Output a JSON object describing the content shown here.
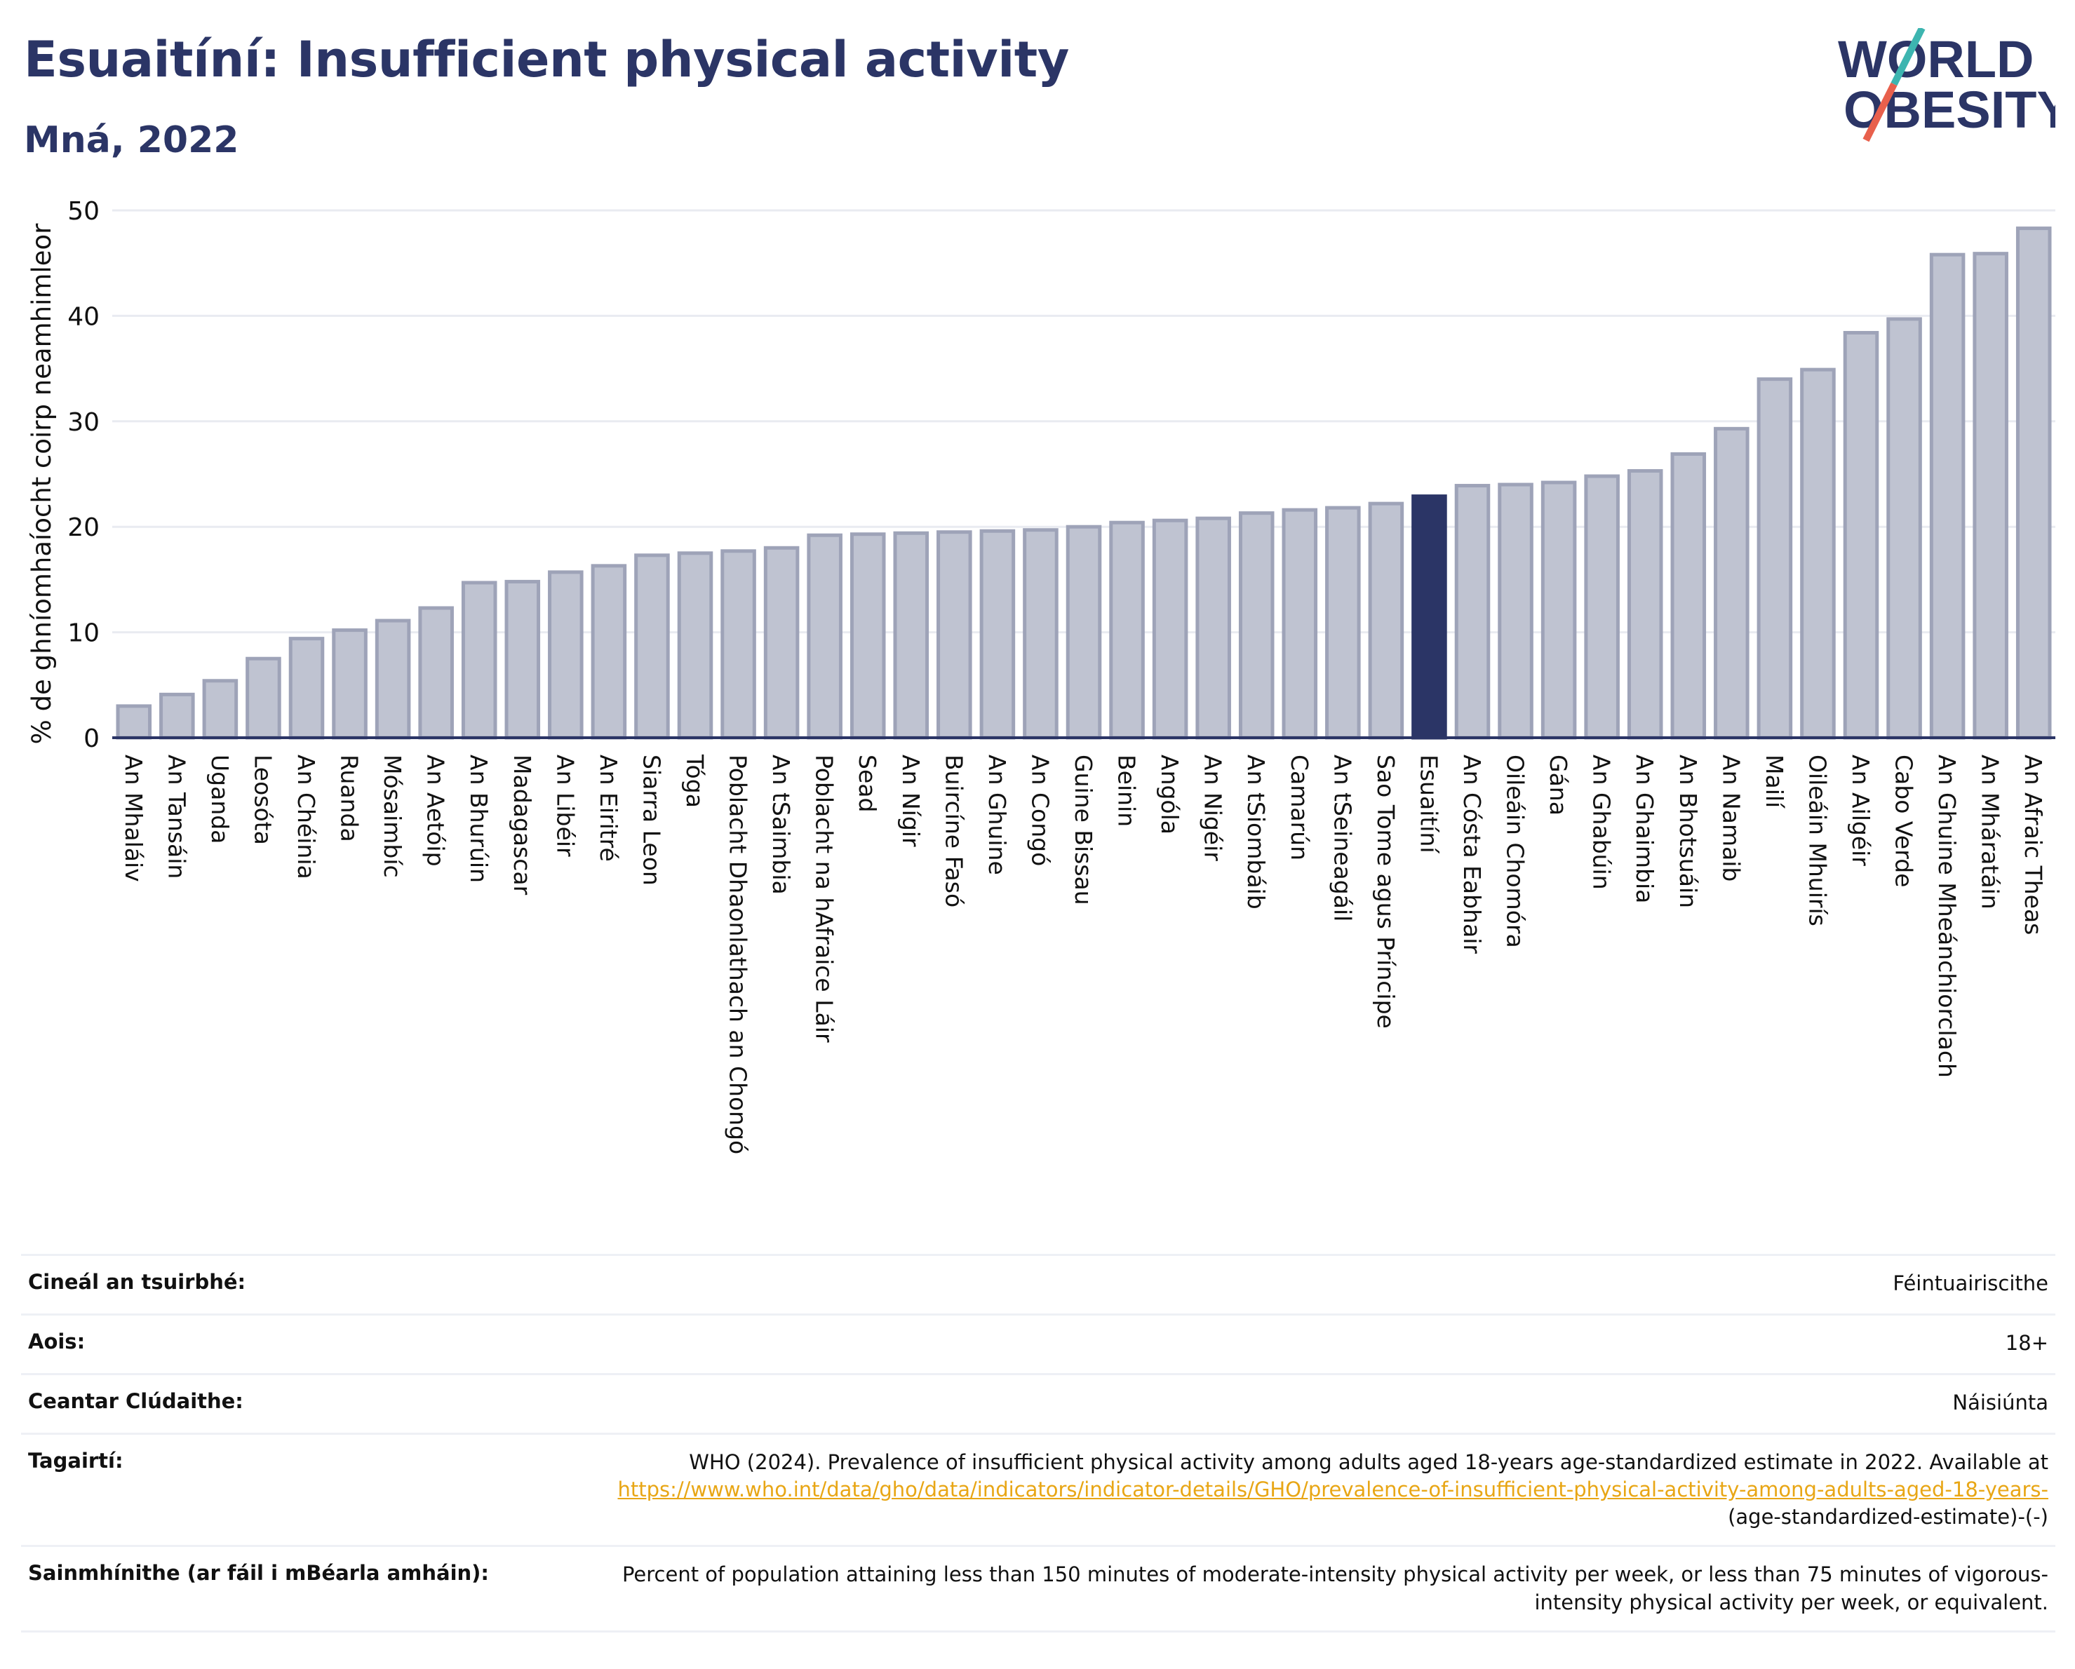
{
  "header": {
    "title": "Esuaitíní: Insufficient physical activity",
    "subtitle": "Mná, 2022"
  },
  "logo": {
    "line1": "WORLD",
    "line2": "OBESITY",
    "text_color": "#2b3566",
    "slash_colors": [
      "#3db5b0",
      "#e8604c"
    ]
  },
  "colors": {
    "bar": "#bfc3d1",
    "bar_stroke": "#9ea3b8",
    "highlight": "#2b3566",
    "grid": "#e9ebf1",
    "axis": "#2b3566"
  },
  "chart_data": {
    "type": "bar",
    "ylabel": "% de ghníomhaíocht coirp neamhimleor",
    "ylim": [
      0,
      50
    ],
    "yticks": [
      0,
      10,
      20,
      30,
      40,
      50
    ],
    "grid": true,
    "highlight": "Esuaitíní",
    "categories": [
      "An Mhaláiv",
      "An Tansáin",
      "Uganda",
      "Leosóta",
      "An Chéinia",
      "Ruanda",
      "Mósaimbíc",
      "An Aetóip",
      "An Bhurúin",
      "Madagascar",
      "An Libéir",
      "An Eiritré",
      "Siarra Leon",
      "Tóga",
      "Poblacht Dhaonlathach an Chongó",
      "An tSaimbia",
      "Poblacht na hAfraice Láir",
      "Sead",
      "An Nígir",
      "Buircíne Fasó",
      "An Ghuine",
      "An Congó",
      "Guine Bissau",
      "Beinin",
      "Angóla",
      "An Nigéir",
      "An tSiombáib",
      "Camarún",
      "An tSeineagáil",
      "Sao Tome agus Príncipe",
      "Esuaitíní",
      "An Cósta Eabhair",
      "Oileáin Chomóra",
      "Gána",
      "An Ghabúin",
      "An Ghaimbia",
      "An Bhotsuáin",
      "An Namaib",
      "Mailí",
      "Oileáin Mhuirís",
      "An Ailgéir",
      "Cabo Verde",
      "An Ghuine Mheánchiorclach",
      "An Mháratáin",
      "An Afraic Theas"
    ],
    "values": [
      3.0,
      4.1,
      5.4,
      7.5,
      9.4,
      10.2,
      11.1,
      12.3,
      14.7,
      14.8,
      15.7,
      16.3,
      17.3,
      17.5,
      17.7,
      18.0,
      19.2,
      19.3,
      19.4,
      19.5,
      19.6,
      19.7,
      20.0,
      20.4,
      20.6,
      20.8,
      21.3,
      21.6,
      21.8,
      22.2,
      22.9,
      23.9,
      24.0,
      24.2,
      24.8,
      25.3,
      26.9,
      29.3,
      34.0,
      34.9,
      38.4,
      39.7,
      45.8,
      45.9,
      48.3
    ]
  },
  "metadata": {
    "rows": [
      {
        "key": "Cineál an tsuirbhé:",
        "value": "Féintuairiscithe"
      },
      {
        "key": "Aois:",
        "value": "18+"
      },
      {
        "key": "Ceantar Clúdaithe:",
        "value": "Náisiúnta"
      },
      {
        "key": "Tagairtí:",
        "value": "WHO (2024). Prevalence of insufficient physical activity among adults aged 18-years age-standardized estimate in 2022. Available at",
        "link": "https://www.who.int/data/gho/data/indicators/indicator-details/GHO/prevalence-of-insufficient-physical-activity-among-adults-aged-18-years-",
        "suffix": "(age-standardized-estimate)-(-)"
      },
      {
        "key": "Sainmhínithe (ar fáil i mBéarla amháin):",
        "value": "Percent of population attaining less than 150 minutes of moderate-intensity physical activity per week, or less than 75 minutes of vigorous-intensity physical activity per week, or equivalent."
      }
    ]
  }
}
